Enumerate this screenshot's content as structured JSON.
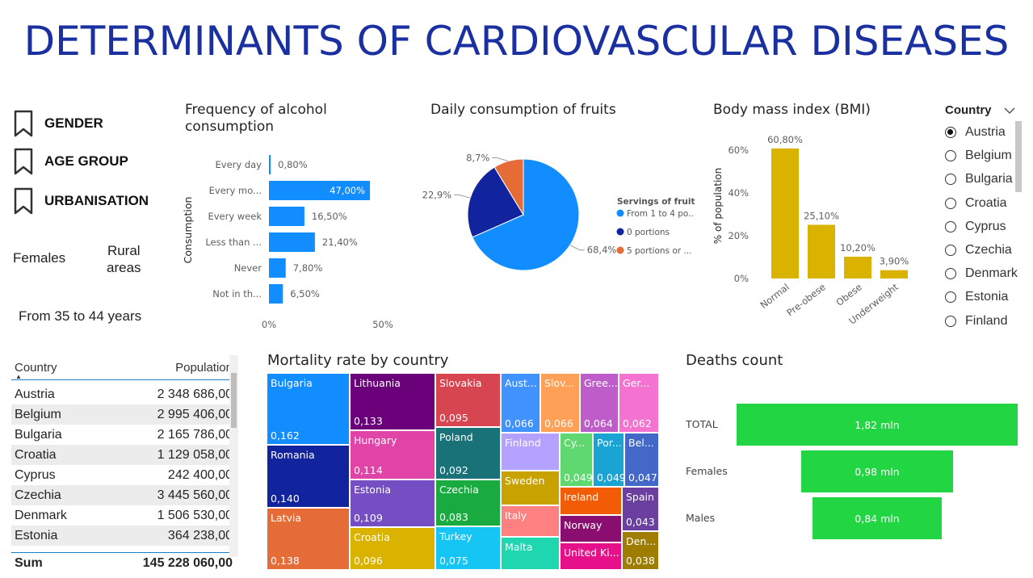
{
  "title": "DETERMINANTS OF CARDIOVASCULAR DISEASES",
  "bookmarks": [
    "GENDER",
    "AGE GROUP",
    "URBANISATION"
  ],
  "cards": {
    "gender": "Females",
    "urbanisation_1": "Rural",
    "urbanisation_2": "areas",
    "age": "From 35 to 44 years"
  },
  "alcohol": {
    "title_1": "Frequency of alcohol",
    "title_2": "consumption",
    "ylabel": "Consumption",
    "chart_data": {
      "type": "bar",
      "orientation": "horizontal",
      "categories": [
        "Every day",
        "Every mo...",
        "Every week",
        "Less than ...",
        "Never",
        "Not in th..."
      ],
      "values": [
        0.8,
        47.0,
        16.5,
        21.4,
        7.8,
        6.5
      ],
      "value_labels": [
        "0,80%",
        "47,00%",
        "16,50%",
        "21,40%",
        "7,80%",
        "6,50%"
      ],
      "xlim": [
        0,
        50
      ],
      "xticks": [
        "0%",
        "50%"
      ],
      "color": "#118dff"
    }
  },
  "fruits": {
    "title": "Daily consumption of fruits",
    "legend_title": "Servings of fruits",
    "chart_data": {
      "type": "pie",
      "labels": [
        "From 1 to 4 po...",
        "0 portions",
        "5 portions or ..."
      ],
      "values": [
        68.4,
        22.9,
        8.7
      ],
      "value_labels": [
        "68,4%",
        "22,9%",
        "8,7%"
      ],
      "colors": [
        "#118dff",
        "#12239e",
        "#e66c37"
      ]
    }
  },
  "bmi": {
    "title": "Body mass index (BMI)",
    "ylabel": "% of population",
    "chart_data": {
      "type": "bar",
      "categories": [
        "Normal",
        "Pre-obese",
        "Obese",
        "Underweight"
      ],
      "values": [
        60.8,
        25.1,
        10.2,
        3.9
      ],
      "value_labels": [
        "60,80%",
        "25,10%",
        "10,20%",
        "3,90%"
      ],
      "ylim": [
        0,
        70
      ],
      "yticks": [
        "0%",
        "20%",
        "40%",
        "60%"
      ],
      "color": "#d9b300"
    }
  },
  "slicer": {
    "header": "Country",
    "items": [
      "Austria",
      "Belgium",
      "Bulgaria",
      "Croatia",
      "Cyprus",
      "Czechia",
      "Denmark",
      "Estonia",
      "Finland"
    ],
    "selected": "Austria"
  },
  "population_table": {
    "columns": [
      "Country",
      "Population"
    ],
    "rows": [
      [
        "Austria",
        "2 348 686,00"
      ],
      [
        "Belgium",
        "2 995 406,00"
      ],
      [
        "Bulgaria",
        "2 165 786,00"
      ],
      [
        "Croatia",
        "1 129 058,00"
      ],
      [
        "Cyprus",
        "242 400,00"
      ],
      [
        "Czechia",
        "3 445 560,00"
      ],
      [
        "Denmark",
        "1 506 530,00"
      ],
      [
        "Estonia",
        "364 238,00"
      ]
    ],
    "total_label": "Sum",
    "total_value": "145 228 060,00"
  },
  "mortality": {
    "title": "Mortality rate by country",
    "chart_data": {
      "type": "treemap",
      "items": [
        {
          "name": "Bulgaria",
          "value": "0,162",
          "color": "#118dff"
        },
        {
          "name": "Romania",
          "value": "0,140",
          "color": "#12239e"
        },
        {
          "name": "Latvia",
          "value": "0,138",
          "color": "#e66c37"
        },
        {
          "name": "Lithuania",
          "value": "0,133",
          "color": "#6b007b"
        },
        {
          "name": "Hungary",
          "value": "0,114",
          "color": "#e044a7"
        },
        {
          "name": "Estonia",
          "value": "0,109",
          "color": "#744ec2"
        },
        {
          "name": "Croatia",
          "value": "0,096",
          "color": "#d9b300"
        },
        {
          "name": "Slovakia",
          "value": "0,095",
          "color": "#d64550"
        },
        {
          "name": "Poland",
          "value": "0,092",
          "color": "#197278"
        },
        {
          "name": "Czechia",
          "value": "0,083",
          "color": "#1aab40"
        },
        {
          "name": "Turkey",
          "value": "0,075",
          "color": "#15c6f4"
        },
        {
          "name": "Aust...",
          "value": "0,066",
          "color": "#4092ff"
        },
        {
          "name": "Slov...",
          "value": "0,066",
          "color": "#ffa058"
        },
        {
          "name": "Gree...",
          "value": "0,064",
          "color": "#be5dc9"
        },
        {
          "name": "Ger...",
          "value": "0,062",
          "color": "#f472d0"
        },
        {
          "name": "Finland",
          "value": "",
          "color": "#b5a1ff"
        },
        {
          "name": "Cy...",
          "value": "0,049",
          "color": "#5fd96f"
        },
        {
          "name": "Por...",
          "value": "0,049",
          "color": "#1aa4d4"
        },
        {
          "name": "Bel...",
          "value": "0,047",
          "color": "#4468c8"
        },
        {
          "name": "Sweden",
          "value": "",
          "color": "#c8a200"
        },
        {
          "name": "Ireland",
          "value": "",
          "color": "#f25c05"
        },
        {
          "name": "Spain",
          "value": "0,043",
          "color": "#6b3fa0"
        },
        {
          "name": "Italy",
          "value": "",
          "color": "#ff8080"
        },
        {
          "name": "Norway",
          "value": "",
          "color": "#8a0e6f"
        },
        {
          "name": "Den...",
          "value": "0,038",
          "color": "#9e7d00"
        },
        {
          "name": "Malta",
          "value": "",
          "color": "#1ed6b0"
        },
        {
          "name": "United Ki...",
          "value": "",
          "color": "#e6118a"
        }
      ]
    }
  },
  "deaths": {
    "title": "Deaths count",
    "chart_data": {
      "type": "funnel",
      "categories": [
        "TOTAL",
        "Females",
        "Males"
      ],
      "values": [
        1.82,
        0.98,
        0.84
      ],
      "value_labels": [
        "1,82 mln",
        "0,98 mln",
        "0,84 mln"
      ],
      "color": "#22d643"
    }
  }
}
